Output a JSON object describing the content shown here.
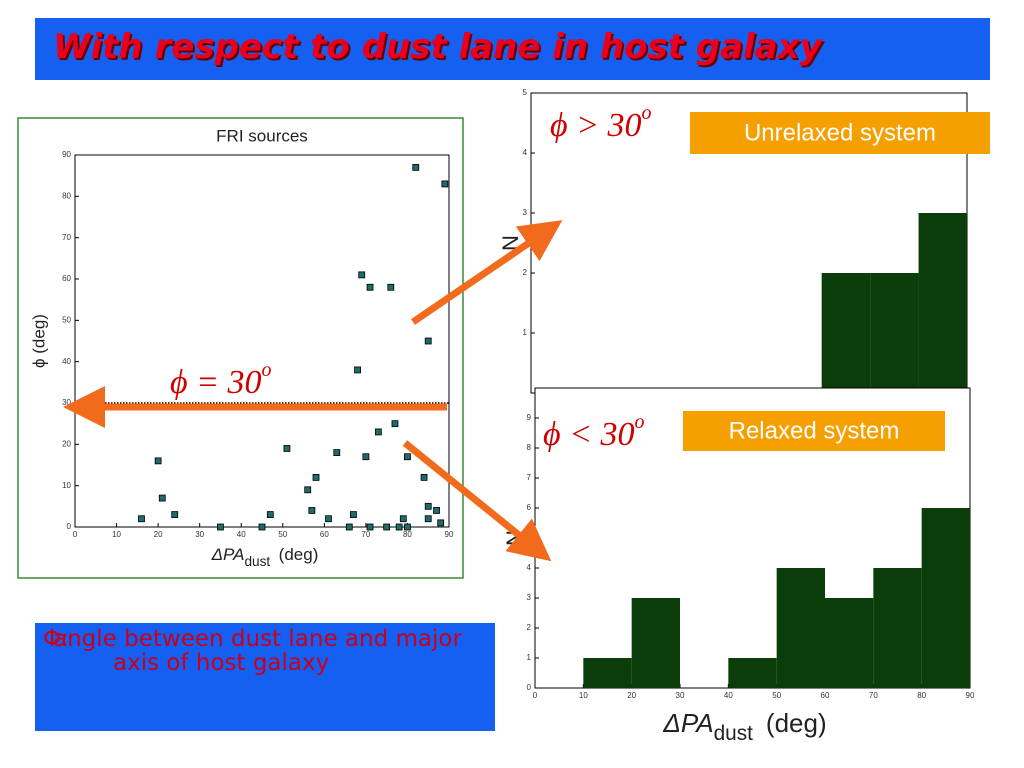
{
  "slide": {
    "title": "With respect to dust lane in host galaxy",
    "note": {
      "symbol": "Φ:",
      "text": "angle between dust lane and major axis of host galaxy"
    },
    "annotations": [
      {
        "text": "ϕ = 30",
        "sup": "o"
      },
      {
        "text": "ϕ > 30",
        "sup": "o",
        "label": "Unrelaxed system"
      },
      {
        "text": "ϕ < 30",
        "sup": "o",
        "label": "Relaxed system"
      }
    ]
  },
  "chart_data": [
    {
      "type": "scatter",
      "title": "FRI sources",
      "xlabel": "ΔPA",
      "xlabel_sub": "dust",
      "xlabel_unit": "(deg)",
      "ylabel": "ϕ  (deg)",
      "x": [
        16,
        20,
        21,
        24,
        35,
        45,
        47,
        51,
        56,
        57,
        58,
        61,
        63,
        66,
        67,
        68,
        69,
        70,
        71,
        71,
        73,
        75,
        76,
        77,
        78,
        79,
        80,
        80,
        82,
        84,
        85,
        85,
        85,
        87,
        88,
        89
      ],
      "y": [
        2,
        16,
        7,
        3,
        0,
        0,
        3,
        19,
        9,
        4,
        12,
        2,
        18,
        0,
        3,
        38,
        61,
        17,
        58,
        0,
        23,
        0,
        58,
        25,
        0,
        2,
        17,
        0,
        87,
        12,
        45,
        5,
        2,
        4,
        1,
        83
      ],
      "color": "#1f6b6b",
      "hline": 30,
      "xlim": [
        0,
        90
      ],
      "ylim": [
        0,
        90
      ],
      "xticks": [
        0,
        10,
        20,
        30,
        40,
        50,
        60,
        70,
        80,
        90
      ],
      "yticks": [
        0,
        10,
        20,
        30,
        40,
        50,
        60,
        70,
        80,
        90
      ]
    },
    {
      "type": "histogram",
      "ylabel": "N",
      "bins": [
        0,
        10,
        20,
        30,
        40,
        50,
        60,
        70,
        80,
        90
      ],
      "counts": [
        0,
        0,
        0,
        0,
        0,
        0,
        2,
        2,
        3
      ],
      "color": "#0b3d0b",
      "xlim": [
        0,
        90
      ],
      "ylim": [
        0,
        5
      ],
      "yticks": [
        1,
        2,
        3,
        4,
        5
      ]
    },
    {
      "type": "histogram",
      "ylabel": "N",
      "xlabel": "ΔPA",
      "xlabel_sub": "dust",
      "xlabel_unit": "(deg)",
      "bins": [
        0,
        10,
        20,
        30,
        40,
        50,
        60,
        70,
        80,
        90
      ],
      "counts": [
        0,
        1,
        3,
        0,
        1,
        4,
        3,
        4,
        6
      ],
      "color": "#0b3d0b",
      "xlim": [
        0,
        90
      ],
      "ylim": [
        0,
        10
      ],
      "xticks": [
        0,
        10,
        20,
        30,
        40,
        50,
        60,
        70,
        80,
        90
      ],
      "yticks": [
        0,
        1,
        2,
        3,
        4,
        5,
        6,
        7,
        8,
        9
      ]
    }
  ]
}
